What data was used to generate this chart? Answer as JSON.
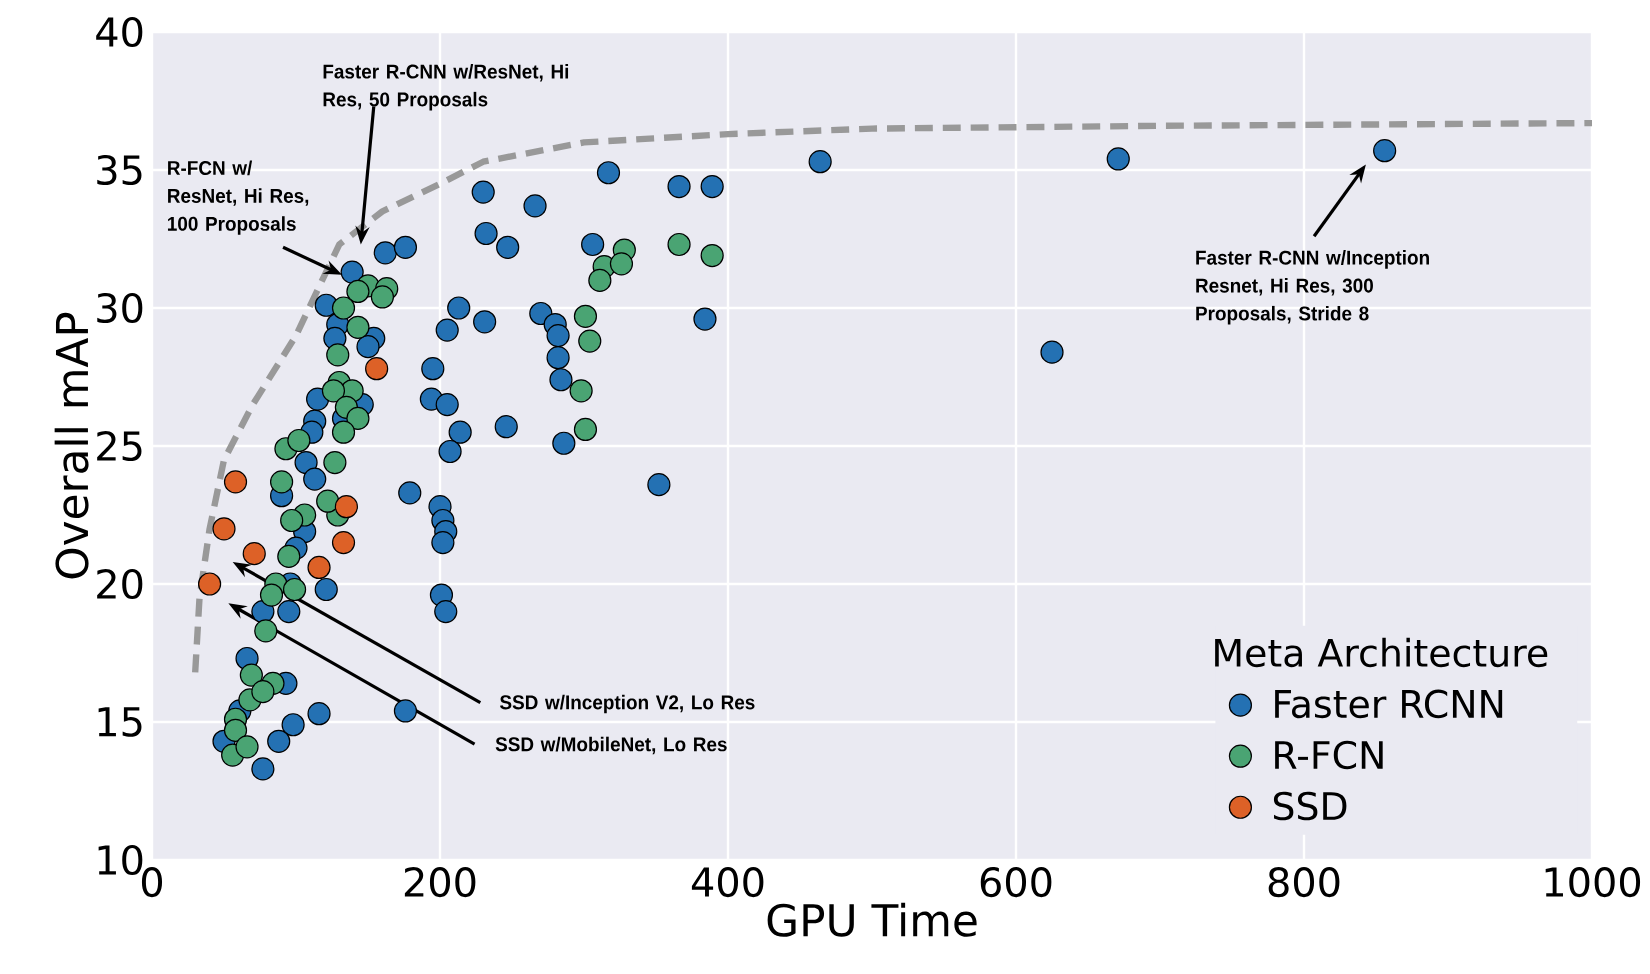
{
  "chart_data": {
    "type": "scatter",
    "xlabel": "GPU Time",
    "ylabel": "Overall mAP",
    "xlim": [
      0,
      1000
    ],
    "ylim": [
      10,
      40
    ],
    "xticks": [
      0,
      200,
      400,
      600,
      800,
      1000
    ],
    "yticks": [
      10,
      15,
      20,
      25,
      30,
      35,
      40
    ],
    "grid": true,
    "legend": "bottom right",
    "legend_title": "Meta Architecture",
    "marker": "circle",
    "series": [
      {
        "type": "line",
        "color": "#999999",
        "line_style": "dashed",
        "marker": "none",
        "x": [
          30,
          33,
          40,
          50,
          70,
          100,
          130,
          160,
          200,
          230,
          300,
          400,
          500,
          700,
          1000
        ],
        "values": [
          16.8,
          19.5,
          22,
          24.5,
          26.5,
          29,
          32.3,
          33.5,
          34.5,
          35.3,
          36,
          36.3,
          36.5,
          36.6,
          36.7
        ]
      },
      {
        "name": "Faster RCNN",
        "color": "#2471b3",
        "x": [
          139,
          162,
          176,
          230,
          232,
          247,
          266,
          317,
          366,
          389,
          464,
          671,
          856,
          625,
          384,
          352,
          213,
          231,
          205,
          270,
          280,
          282,
          282,
          284,
          306,
          286,
          246,
          195,
          194,
          205,
          214,
          207,
          179,
          200,
          202,
          204,
          202,
          201,
          204,
          176,
          121,
          129,
          127,
          154,
          150,
          146,
          113,
          111,
          107,
          113,
          90,
          106,
          100,
          96,
          121,
          77,
          95,
          93,
          98,
          88,
          116,
          77,
          50,
          61,
          66,
          115,
          133
        ],
        "values": [
          31.3,
          32.0,
          32.2,
          34.2,
          32.7,
          32.2,
          33.7,
          34.9,
          34.4,
          34.4,
          35.3,
          35.4,
          35.7,
          28.4,
          29.6,
          23.6,
          30.0,
          29.5,
          29.2,
          29.8,
          29.4,
          29.0,
          28.2,
          27.4,
          32.3,
          25.1,
          25.7,
          27.8,
          26.7,
          26.5,
          25.5,
          24.8,
          23.3,
          22.8,
          22.3,
          21.9,
          21.5,
          19.6,
          19.0,
          15.4,
          30.1,
          29.4,
          28.9,
          28.9,
          28.6,
          26.5,
          25.9,
          25.5,
          24.4,
          23.8,
          23.2,
          21.9,
          21.3,
          20.0,
          19.8,
          19.0,
          19.0,
          16.4,
          14.9,
          14.3,
          15.3,
          13.3,
          14.3,
          15.4,
          17.3,
          26.7,
          26.0
        ]
      },
      {
        "name": "R-FCN",
        "color": "#4aa473",
        "x": [
          150,
          163,
          160,
          143,
          133,
          143,
          129,
          130,
          139,
          126,
          135,
          143,
          133,
          127,
          93,
          102,
          90,
          129,
          122,
          106,
          97,
          95,
          86,
          83,
          79,
          99,
          84,
          69,
          68,
          58,
          58,
          56,
          66,
          77,
          366,
          389,
          328,
          314,
          311,
          326,
          301,
          304,
          298,
          301
        ],
        "values": [
          30.8,
          30.7,
          30.4,
          30.6,
          30.0,
          29.3,
          28.3,
          27.3,
          27.0,
          27.0,
          26.4,
          26.0,
          25.5,
          24.4,
          24.9,
          25.2,
          23.7,
          22.5,
          23.0,
          22.5,
          22.3,
          21.0,
          20.0,
          19.6,
          18.3,
          19.8,
          16.4,
          16.7,
          15.8,
          15.1,
          14.7,
          13.8,
          14.1,
          16.1,
          32.3,
          31.9,
          32.1,
          31.5,
          31.0,
          31.6,
          29.7,
          28.8,
          27.0,
          25.6
        ]
      },
      {
        "name": "SSD",
        "color": "#dd6127",
        "x": [
          58,
          50,
          71,
          40,
          116,
          133,
          135,
          156
        ],
        "values": [
          23.7,
          22.0,
          21.1,
          20.0,
          20.6,
          21.5,
          22.8,
          27.8
        ]
      }
    ],
    "annotations": [
      "Faster R-CNN w/ResNet, Hi Res, 50 Proposals",
      {
        "text": "R-FCN w/ ResNet, Hi Res, 100 Proposals",
        "x": 132,
        "y": 31.2
      },
      "SSD w/Inception V2, Lo Res",
      "SSD w/MobileNet, Lo Res",
      "Faster R-CNN w/Inception Resnet, Hi Res, 300 Proposals, Stride 8"
    ]
  }
}
